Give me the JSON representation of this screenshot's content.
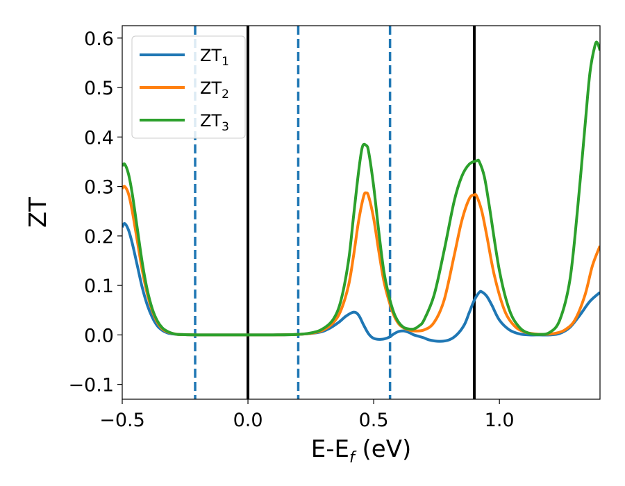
{
  "chart_data": {
    "type": "line",
    "xlabel_main": "E-E",
    "xlabel_sub": "f",
    "xlabel_unit": " (eV)",
    "ylabel": "ZT",
    "xlim": [
      -0.5,
      1.4
    ],
    "ylim": [
      -0.13,
      0.625
    ],
    "xticks": [
      {
        "value": -0.5,
        "label": "−0.5"
      },
      {
        "value": 0.0,
        "label": "0.0"
      },
      {
        "value": 0.5,
        "label": "0.5"
      },
      {
        "value": 1.0,
        "label": "1.0"
      }
    ],
    "yticks": [
      {
        "value": -0.1,
        "label": "−0.1"
      },
      {
        "value": 0.0,
        "label": "0.0"
      },
      {
        "value": 0.1,
        "label": "0.1"
      },
      {
        "value": 0.2,
        "label": "0.2"
      },
      {
        "value": 0.3,
        "label": "0.3"
      },
      {
        "value": 0.4,
        "label": "0.4"
      },
      {
        "value": 0.5,
        "label": "0.5"
      },
      {
        "value": 0.6,
        "label": "0.6"
      }
    ],
    "grid": false,
    "legend_position": "top-left",
    "vertical_lines": [
      {
        "x": -0.21,
        "style": "dashed",
        "color": "#1f77b4"
      },
      {
        "x": 0.0,
        "style": "solid",
        "color": "#000000"
      },
      {
        "x": 0.2,
        "style": "dashed",
        "color": "#1f77b4"
      },
      {
        "x": 0.565,
        "style": "dashed",
        "color": "#1f77b4"
      },
      {
        "x": 0.9,
        "style": "solid",
        "color": "#000000"
      }
    ],
    "series": [
      {
        "name_main": "ZT",
        "name_sub": "1",
        "color": "#1f77b4",
        "x": [
          -0.5,
          -0.49,
          -0.475,
          -0.46,
          -0.44,
          -0.42,
          -0.4,
          -0.38,
          -0.36,
          -0.34,
          -0.32,
          -0.3,
          -0.28,
          -0.25,
          -0.2,
          -0.1,
          0.0,
          0.1,
          0.2,
          0.28,
          0.32,
          0.36,
          0.39,
          0.42,
          0.44,
          0.46,
          0.48,
          0.5,
          0.53,
          0.56,
          0.58,
          0.6,
          0.62,
          0.64,
          0.66,
          0.68,
          0.7,
          0.72,
          0.76,
          0.8,
          0.83,
          0.86,
          0.88,
          0.9,
          0.92,
          0.93,
          0.95,
          0.97,
          1.0,
          1.04,
          1.08,
          1.12,
          1.16,
          1.2,
          1.24,
          1.28,
          1.32,
          1.36,
          1.4
        ],
        "y": [
          0.218,
          0.225,
          0.212,
          0.185,
          0.14,
          0.095,
          0.06,
          0.035,
          0.018,
          0.009,
          0.004,
          0.002,
          0.001,
          0.0005,
          0.0,
          0.0,
          0.0,
          0.0,
          0.001,
          0.005,
          0.012,
          0.025,
          0.038,
          0.046,
          0.04,
          0.02,
          0.002,
          -0.007,
          -0.009,
          -0.005,
          0.002,
          0.007,
          0.008,
          0.005,
          0.0,
          -0.003,
          -0.006,
          -0.01,
          -0.013,
          -0.01,
          0.0,
          0.02,
          0.045,
          0.07,
          0.086,
          0.087,
          0.078,
          0.06,
          0.03,
          0.01,
          0.002,
          0.0,
          0.0,
          0.0,
          0.003,
          0.015,
          0.04,
          0.068,
          0.086
        ]
      },
      {
        "name_main": "ZT",
        "name_sub": "2",
        "color": "#ff7f0e",
        "x": [
          -0.5,
          -0.49,
          -0.475,
          -0.46,
          -0.44,
          -0.42,
          -0.4,
          -0.38,
          -0.36,
          -0.34,
          -0.32,
          -0.3,
          -0.28,
          -0.25,
          -0.2,
          -0.1,
          0.0,
          0.1,
          0.2,
          0.26,
          0.3,
          0.34,
          0.37,
          0.4,
          0.42,
          0.44,
          0.46,
          0.47,
          0.48,
          0.5,
          0.52,
          0.54,
          0.56,
          0.58,
          0.6,
          0.62,
          0.64,
          0.66,
          0.7,
          0.74,
          0.78,
          0.82,
          0.85,
          0.88,
          0.9,
          0.91,
          0.93,
          0.95,
          0.98,
          1.02,
          1.06,
          1.1,
          1.14,
          1.18,
          1.22,
          1.26,
          1.3,
          1.34,
          1.37,
          1.4
        ],
        "y": [
          0.296,
          0.3,
          0.285,
          0.25,
          0.19,
          0.13,
          0.082,
          0.048,
          0.025,
          0.012,
          0.006,
          0.003,
          0.001,
          0.0005,
          0.0,
          0.0,
          0.0,
          0.0,
          0.001,
          0.004,
          0.01,
          0.025,
          0.05,
          0.1,
          0.16,
          0.23,
          0.28,
          0.287,
          0.28,
          0.235,
          0.17,
          0.11,
          0.07,
          0.04,
          0.022,
          0.014,
          0.01,
          0.008,
          0.01,
          0.025,
          0.07,
          0.16,
          0.23,
          0.275,
          0.283,
          0.28,
          0.25,
          0.2,
          0.12,
          0.05,
          0.018,
          0.006,
          0.002,
          0.001,
          0.003,
          0.01,
          0.03,
          0.08,
          0.14,
          0.18
        ]
      },
      {
        "name_main": "ZT",
        "name_sub": "3",
        "color": "#2ca02c",
        "x": [
          -0.5,
          -0.49,
          -0.475,
          -0.46,
          -0.44,
          -0.42,
          -0.4,
          -0.38,
          -0.36,
          -0.34,
          -0.32,
          -0.3,
          -0.28,
          -0.25,
          -0.2,
          -0.1,
          0.0,
          0.1,
          0.2,
          0.26,
          0.3,
          0.34,
          0.37,
          0.4,
          0.42,
          0.44,
          0.455,
          0.47,
          0.48,
          0.5,
          0.52,
          0.54,
          0.56,
          0.58,
          0.6,
          0.62,
          0.64,
          0.66,
          0.68,
          0.7,
          0.74,
          0.78,
          0.82,
          0.85,
          0.88,
          0.91,
          0.92,
          0.94,
          0.96,
          1.0,
          1.04,
          1.08,
          1.12,
          1.16,
          1.2,
          1.24,
          1.28,
          1.31,
          1.34,
          1.36,
          1.38,
          1.39,
          1.4
        ],
        "y": [
          0.342,
          0.345,
          0.325,
          0.285,
          0.215,
          0.145,
          0.09,
          0.052,
          0.028,
          0.014,
          0.007,
          0.003,
          0.001,
          0.0005,
          0.0,
          0.0,
          0.0,
          0.0,
          0.001,
          0.005,
          0.013,
          0.032,
          0.07,
          0.15,
          0.24,
          0.33,
          0.38,
          0.383,
          0.37,
          0.3,
          0.21,
          0.13,
          0.08,
          0.045,
          0.025,
          0.015,
          0.012,
          0.012,
          0.018,
          0.03,
          0.08,
          0.17,
          0.27,
          0.32,
          0.345,
          0.352,
          0.35,
          0.32,
          0.26,
          0.13,
          0.05,
          0.015,
          0.003,
          0.001,
          0.005,
          0.03,
          0.11,
          0.25,
          0.42,
          0.53,
          0.585,
          0.59,
          0.575
        ]
      }
    ]
  }
}
